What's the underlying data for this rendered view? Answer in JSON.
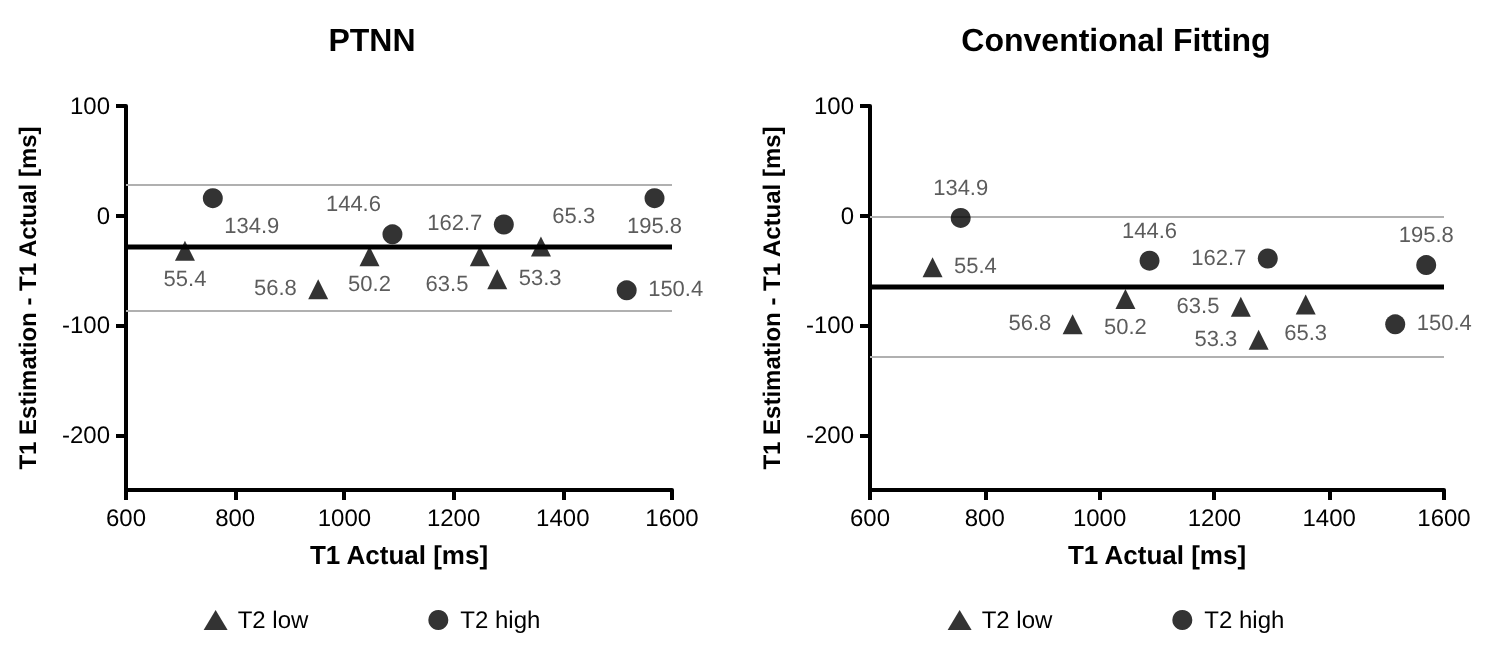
{
  "chart_data": [
    {
      "type": "scatter",
      "title": "PTNN",
      "xlabel": "T1 Actual [ms]",
      "ylabel": "T1 Estimation - T1 Actual [ms]",
      "xlim": [
        600,
        1600
      ],
      "xticks": [
        600,
        800,
        1000,
        1200,
        1400,
        1600
      ],
      "ylim": [
        -250,
        100
      ],
      "yticks": [
        -200,
        -100,
        0,
        100
      ],
      "legend": "bottom",
      "ref_lines": [
        {
          "axis": "y",
          "value": -28,
          "color": "#000000"
        },
        {
          "axis": "y",
          "value": 29,
          "color": "#b0b0b0"
        },
        {
          "axis": "y",
          "value": -87,
          "color": "#b0b0b0"
        }
      ],
      "series": [
        {
          "name": "T2 low",
          "color": "#000000",
          "marker": "triangle",
          "x": [
            708,
            952,
            1046,
            1248,
            1280,
            1360
          ],
          "values": [
            -32,
            -67,
            -37,
            -37,
            -58,
            -28
          ]
        },
        {
          "name": "T2 high",
          "color": "#000000",
          "marker": "circle",
          "x": [
            759,
            1088,
            1292,
            1517,
            1568
          ],
          "values": [
            16,
            -17,
            -8,
            -68,
            16
          ]
        }
      ],
      "annotations": [
        {
          "text": "55.4",
          "x": 708,
          "y": -32
        },
        {
          "text": "56.8",
          "x": 952,
          "y": -67
        },
        {
          "text": "50.2",
          "x": 1046,
          "y": -37
        },
        {
          "text": "63.5",
          "x": 1248,
          "y": -37
        },
        {
          "text": "53.3",
          "x": 1280,
          "y": -58
        },
        {
          "text": "65.3",
          "x": 1360,
          "y": -28
        },
        {
          "text": "134.9",
          "x": 759,
          "y": 16
        },
        {
          "text": "144.6",
          "x": 1088,
          "y": -17
        },
        {
          "text": "162.7",
          "x": 1292,
          "y": -8
        },
        {
          "text": "150.4",
          "x": 1517,
          "y": -68
        },
        {
          "text": "195.8",
          "x": 1568,
          "y": 16
        }
      ]
    },
    {
      "type": "scatter",
      "title": "Conventional Fitting",
      "xlabel": "T1 Actual [ms]",
      "ylabel": "T1 Estimation - T1 Actual [ms]",
      "xlim": [
        600,
        1600
      ],
      "xticks": [
        600,
        800,
        1000,
        1200,
        1400,
        1600
      ],
      "ylim": [
        -250,
        100
      ],
      "yticks": [
        -200,
        -100,
        0,
        100
      ],
      "legend": "bottom",
      "ref_lines": [
        {
          "axis": "y",
          "value": -64,
          "color": "#000000"
        },
        {
          "axis": "y",
          "value": 0,
          "color": "#b0b0b0"
        },
        {
          "axis": "y",
          "value": -129,
          "color": "#b0b0b0"
        }
      ],
      "series": [
        {
          "name": "T2 low",
          "color": "#000000",
          "marker": "triangle",
          "x": [
            709,
            953,
            1045,
            1246,
            1277,
            1359
          ],
          "values": [
            -47,
            -99,
            -76,
            -83,
            -113,
            -81
          ]
        },
        {
          "name": "T2 high",
          "color": "#000000",
          "marker": "circle",
          "x": [
            758,
            1087,
            1293,
            1515,
            1569
          ],
          "values": [
            -2,
            -41,
            -39,
            -99,
            -45
          ]
        }
      ],
      "annotations": [
        {
          "text": "55.4",
          "x": 709,
          "y": -47
        },
        {
          "text": "56.8",
          "x": 953,
          "y": -99
        },
        {
          "text": "50.2",
          "x": 1045,
          "y": -76
        },
        {
          "text": "63.5",
          "x": 1246,
          "y": -83
        },
        {
          "text": "53.3",
          "x": 1277,
          "y": -113
        },
        {
          "text": "65.3",
          "x": 1359,
          "y": -81
        },
        {
          "text": "134.9",
          "x": 758,
          "y": -2
        },
        {
          "text": "144.6",
          "x": 1087,
          "y": -41
        },
        {
          "text": "162.7",
          "x": 1293,
          "y": -39
        },
        {
          "text": "150.4",
          "x": 1515,
          "y": -99
        },
        {
          "text": "195.8",
          "x": 1569,
          "y": -45
        }
      ]
    }
  ]
}
